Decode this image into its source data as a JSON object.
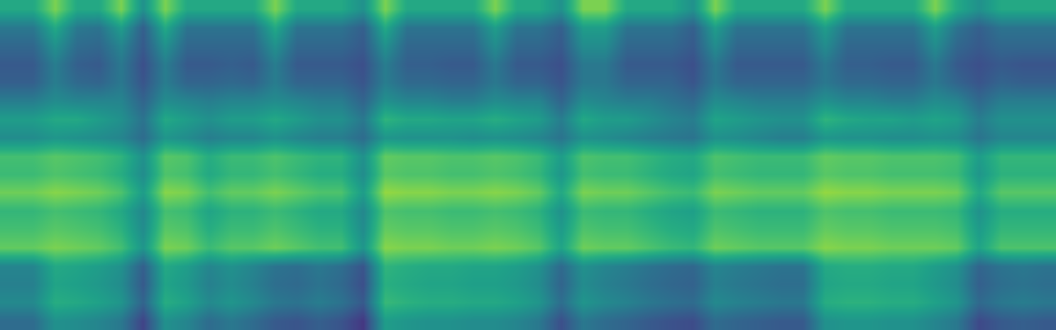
{
  "chart_data": {
    "type": "heatmap",
    "color": "viridis",
    "zlim": [
      0,
      1
    ],
    "grid": false,
    "tick_labels": false,
    "z": [
      [
        0.6,
        0.6,
        0.8,
        0.6,
        0.6,
        0.8,
        0.5,
        0.8,
        0.6,
        0.6,
        0.6,
        0.6,
        0.8,
        0.6,
        0.6,
        0.6,
        0.5,
        0.8,
        0.6,
        0.6,
        0.6,
        0.6,
        0.8,
        0.6,
        0.6,
        0.5,
        0.8,
        0.8,
        0.6,
        0.6,
        0.6,
        0.5,
        0.8,
        0.6,
        0.6,
        0.6,
        0.6,
        0.8,
        0.6,
        0.6,
        0.6,
        0.6,
        0.8,
        0.6,
        0.5,
        0.6,
        0.6,
        0.6
      ],
      [
        0.4,
        0.4,
        0.6,
        0.4,
        0.38,
        0.55,
        0.3,
        0.6,
        0.38,
        0.38,
        0.38,
        0.38,
        0.6,
        0.38,
        0.38,
        0.38,
        0.3,
        0.6,
        0.38,
        0.38,
        0.38,
        0.38,
        0.55,
        0.38,
        0.38,
        0.3,
        0.55,
        0.55,
        0.38,
        0.38,
        0.38,
        0.3,
        0.55,
        0.38,
        0.38,
        0.38,
        0.38,
        0.55,
        0.38,
        0.38,
        0.38,
        0.38,
        0.55,
        0.38,
        0.3,
        0.38,
        0.38,
        0.38
      ],
      [
        0.33,
        0.33,
        0.5,
        0.35,
        0.33,
        0.45,
        0.28,
        0.5,
        0.33,
        0.33,
        0.33,
        0.33,
        0.5,
        0.33,
        0.33,
        0.33,
        0.28,
        0.5,
        0.33,
        0.33,
        0.33,
        0.33,
        0.48,
        0.33,
        0.33,
        0.28,
        0.48,
        0.48,
        0.33,
        0.33,
        0.33,
        0.28,
        0.48,
        0.33,
        0.33,
        0.33,
        0.33,
        0.48,
        0.33,
        0.33,
        0.33,
        0.33,
        0.48,
        0.33,
        0.28,
        0.33,
        0.33,
        0.33
      ],
      [
        0.28,
        0.28,
        0.42,
        0.3,
        0.28,
        0.4,
        0.24,
        0.42,
        0.28,
        0.28,
        0.3,
        0.28,
        0.42,
        0.28,
        0.28,
        0.28,
        0.24,
        0.42,
        0.3,
        0.3,
        0.28,
        0.28,
        0.4,
        0.28,
        0.28,
        0.24,
        0.4,
        0.4,
        0.28,
        0.28,
        0.28,
        0.24,
        0.4,
        0.28,
        0.28,
        0.28,
        0.28,
        0.4,
        0.3,
        0.3,
        0.28,
        0.28,
        0.4,
        0.28,
        0.24,
        0.28,
        0.26,
        0.26
      ],
      [
        0.3,
        0.3,
        0.42,
        0.34,
        0.32,
        0.4,
        0.26,
        0.42,
        0.32,
        0.32,
        0.34,
        0.32,
        0.42,
        0.32,
        0.32,
        0.32,
        0.26,
        0.42,
        0.34,
        0.34,
        0.32,
        0.32,
        0.4,
        0.32,
        0.32,
        0.26,
        0.4,
        0.4,
        0.32,
        0.32,
        0.32,
        0.26,
        0.4,
        0.32,
        0.32,
        0.32,
        0.32,
        0.4,
        0.34,
        0.34,
        0.32,
        0.32,
        0.4,
        0.32,
        0.26,
        0.32,
        0.3,
        0.3
      ],
      [
        0.42,
        0.42,
        0.48,
        0.45,
        0.45,
        0.45,
        0.32,
        0.48,
        0.45,
        0.42,
        0.45,
        0.45,
        0.48,
        0.45,
        0.42,
        0.42,
        0.32,
        0.5,
        0.45,
        0.45,
        0.42,
        0.42,
        0.48,
        0.45,
        0.45,
        0.32,
        0.48,
        0.45,
        0.42,
        0.42,
        0.38,
        0.34,
        0.48,
        0.45,
        0.42,
        0.42,
        0.42,
        0.5,
        0.45,
        0.45,
        0.42,
        0.42,
        0.48,
        0.45,
        0.34,
        0.42,
        0.42,
        0.42
      ],
      [
        0.55,
        0.55,
        0.6,
        0.6,
        0.55,
        0.5,
        0.38,
        0.6,
        0.55,
        0.5,
        0.55,
        0.55,
        0.6,
        0.55,
        0.5,
        0.5,
        0.4,
        0.65,
        0.6,
        0.6,
        0.58,
        0.58,
        0.62,
        0.58,
        0.55,
        0.42,
        0.6,
        0.55,
        0.55,
        0.5,
        0.45,
        0.42,
        0.58,
        0.55,
        0.52,
        0.5,
        0.5,
        0.65,
        0.6,
        0.58,
        0.58,
        0.55,
        0.58,
        0.55,
        0.42,
        0.5,
        0.5,
        0.5
      ],
      [
        0.48,
        0.48,
        0.52,
        0.5,
        0.48,
        0.45,
        0.35,
        0.52,
        0.48,
        0.42,
        0.45,
        0.45,
        0.5,
        0.45,
        0.42,
        0.42,
        0.35,
        0.52,
        0.5,
        0.5,
        0.5,
        0.48,
        0.5,
        0.48,
        0.45,
        0.38,
        0.5,
        0.48,
        0.45,
        0.42,
        0.4,
        0.38,
        0.5,
        0.48,
        0.45,
        0.42,
        0.42,
        0.52,
        0.5,
        0.5,
        0.48,
        0.48,
        0.5,
        0.48,
        0.38,
        0.45,
        0.45,
        0.45
      ],
      [
        0.7,
        0.7,
        0.74,
        0.72,
        0.7,
        0.65,
        0.5,
        0.74,
        0.72,
        0.62,
        0.68,
        0.68,
        0.72,
        0.68,
        0.65,
        0.65,
        0.5,
        0.76,
        0.74,
        0.74,
        0.72,
        0.72,
        0.74,
        0.72,
        0.68,
        0.55,
        0.72,
        0.7,
        0.7,
        0.66,
        0.62,
        0.6,
        0.72,
        0.7,
        0.68,
        0.68,
        0.68,
        0.76,
        0.74,
        0.74,
        0.72,
        0.72,
        0.72,
        0.7,
        0.55,
        0.66,
        0.66,
        0.66
      ],
      [
        0.68,
        0.68,
        0.72,
        0.7,
        0.68,
        0.62,
        0.48,
        0.72,
        0.7,
        0.6,
        0.66,
        0.66,
        0.7,
        0.66,
        0.62,
        0.62,
        0.48,
        0.74,
        0.72,
        0.72,
        0.7,
        0.7,
        0.72,
        0.7,
        0.66,
        0.52,
        0.7,
        0.68,
        0.68,
        0.64,
        0.6,
        0.58,
        0.7,
        0.68,
        0.66,
        0.66,
        0.66,
        0.74,
        0.72,
        0.72,
        0.7,
        0.7,
        0.7,
        0.68,
        0.52,
        0.64,
        0.64,
        0.64
      ],
      [
        0.78,
        0.78,
        0.82,
        0.8,
        0.78,
        0.72,
        0.55,
        0.82,
        0.8,
        0.7,
        0.76,
        0.76,
        0.8,
        0.76,
        0.72,
        0.72,
        0.55,
        0.84,
        0.82,
        0.82,
        0.8,
        0.8,
        0.82,
        0.8,
        0.76,
        0.6,
        0.8,
        0.78,
        0.78,
        0.74,
        0.7,
        0.68,
        0.8,
        0.78,
        0.76,
        0.76,
        0.76,
        0.84,
        0.82,
        0.82,
        0.8,
        0.8,
        0.8,
        0.78,
        0.6,
        0.74,
        0.74,
        0.74
      ],
      [
        0.66,
        0.66,
        0.7,
        0.68,
        0.66,
        0.6,
        0.46,
        0.7,
        0.68,
        0.58,
        0.64,
        0.64,
        0.68,
        0.64,
        0.6,
        0.6,
        0.46,
        0.72,
        0.7,
        0.7,
        0.68,
        0.68,
        0.7,
        0.68,
        0.64,
        0.5,
        0.68,
        0.66,
        0.66,
        0.62,
        0.58,
        0.56,
        0.68,
        0.66,
        0.64,
        0.64,
        0.64,
        0.72,
        0.7,
        0.7,
        0.68,
        0.68,
        0.68,
        0.66,
        0.5,
        0.62,
        0.62,
        0.62
      ],
      [
        0.7,
        0.7,
        0.74,
        0.72,
        0.7,
        0.64,
        0.48,
        0.74,
        0.72,
        0.62,
        0.68,
        0.68,
        0.72,
        0.68,
        0.64,
        0.64,
        0.48,
        0.76,
        0.74,
        0.74,
        0.72,
        0.72,
        0.74,
        0.72,
        0.68,
        0.54,
        0.72,
        0.7,
        0.7,
        0.66,
        0.62,
        0.6,
        0.72,
        0.7,
        0.68,
        0.68,
        0.68,
        0.76,
        0.74,
        0.74,
        0.72,
        0.72,
        0.72,
        0.7,
        0.54,
        0.66,
        0.66,
        0.66
      ],
      [
        0.76,
        0.76,
        0.8,
        0.78,
        0.76,
        0.7,
        0.52,
        0.8,
        0.78,
        0.68,
        0.74,
        0.74,
        0.78,
        0.74,
        0.7,
        0.7,
        0.52,
        0.82,
        0.8,
        0.8,
        0.78,
        0.78,
        0.8,
        0.78,
        0.74,
        0.58,
        0.78,
        0.76,
        0.76,
        0.72,
        0.68,
        0.66,
        0.78,
        0.76,
        0.74,
        0.74,
        0.74,
        0.82,
        0.8,
        0.8,
        0.78,
        0.78,
        0.78,
        0.76,
        0.58,
        0.72,
        0.72,
        0.72
      ],
      [
        0.45,
        0.45,
        0.6,
        0.58,
        0.55,
        0.5,
        0.3,
        0.6,
        0.55,
        0.45,
        0.5,
        0.45,
        0.38,
        0.36,
        0.4,
        0.36,
        0.26,
        0.65,
        0.62,
        0.6,
        0.6,
        0.58,
        0.58,
        0.55,
        0.5,
        0.34,
        0.5,
        0.45,
        0.42,
        0.38,
        0.35,
        0.33,
        0.45,
        0.42,
        0.4,
        0.38,
        0.38,
        0.6,
        0.62,
        0.62,
        0.6,
        0.6,
        0.55,
        0.5,
        0.32,
        0.38,
        0.4,
        0.38
      ],
      [
        0.43,
        0.43,
        0.58,
        0.56,
        0.53,
        0.48,
        0.28,
        0.58,
        0.53,
        0.43,
        0.48,
        0.43,
        0.36,
        0.34,
        0.38,
        0.34,
        0.24,
        0.63,
        0.6,
        0.58,
        0.58,
        0.56,
        0.56,
        0.53,
        0.48,
        0.32,
        0.48,
        0.43,
        0.4,
        0.36,
        0.33,
        0.31,
        0.43,
        0.4,
        0.38,
        0.36,
        0.36,
        0.58,
        0.6,
        0.6,
        0.58,
        0.58,
        0.53,
        0.48,
        0.3,
        0.36,
        0.38,
        0.36
      ],
      [
        0.47,
        0.47,
        0.62,
        0.6,
        0.57,
        0.52,
        0.32,
        0.62,
        0.57,
        0.47,
        0.52,
        0.47,
        0.4,
        0.38,
        0.42,
        0.38,
        0.28,
        0.67,
        0.64,
        0.62,
        0.62,
        0.6,
        0.6,
        0.57,
        0.52,
        0.36,
        0.52,
        0.47,
        0.44,
        0.4,
        0.37,
        0.35,
        0.47,
        0.44,
        0.42,
        0.4,
        0.4,
        0.62,
        0.64,
        0.64,
        0.62,
        0.62,
        0.57,
        0.52,
        0.34,
        0.4,
        0.42,
        0.4
      ],
      [
        0.35,
        0.35,
        0.5,
        0.48,
        0.45,
        0.4,
        0.2,
        0.5,
        0.45,
        0.35,
        0.4,
        0.35,
        0.28,
        0.26,
        0.3,
        0.26,
        0.16,
        0.55,
        0.52,
        0.5,
        0.5,
        0.48,
        0.48,
        0.45,
        0.4,
        0.24,
        0.4,
        0.35,
        0.32,
        0.28,
        0.25,
        0.23,
        0.35,
        0.32,
        0.3,
        0.28,
        0.28,
        0.5,
        0.52,
        0.52,
        0.5,
        0.5,
        0.45,
        0.4,
        0.22,
        0.28,
        0.3,
        0.28
      ]
    ]
  }
}
